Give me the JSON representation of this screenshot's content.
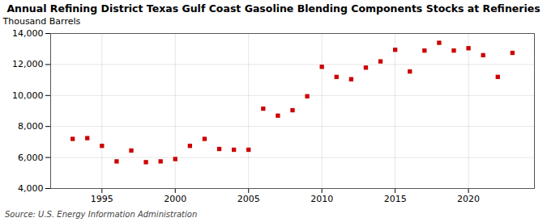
{
  "chart_data": {
    "type": "scatter",
    "title": "Annual Refining District Texas Gulf Coast Gasoline Blending Components Stocks at Refineries",
    "ylabel": "Thousand Barrels",
    "source": "Source: U.S. Energy Information Administration",
    "x": [
      1993,
      1994,
      1995,
      1996,
      1997,
      1998,
      1999,
      2000,
      2001,
      2002,
      2003,
      2004,
      2005,
      2006,
      2007,
      2008,
      2009,
      2010,
      2011,
      2012,
      2013,
      2014,
      2015,
      2016,
      2017,
      2018,
      2019,
      2020,
      2021,
      2022,
      2023
    ],
    "values": [
      7200,
      7250,
      6750,
      5750,
      6450,
      5700,
      5750,
      5900,
      6750,
      7200,
      6550,
      6500,
      6500,
      9150,
      8700,
      9050,
      9950,
      11850,
      11200,
      11050,
      11800,
      12200,
      12950,
      11550,
      12900,
      13400,
      12900,
      13050,
      12600,
      11200,
      12750
    ],
    "color": "#cc0000",
    "marker": "square",
    "grid": true,
    "xlim": [
      1991.5,
      2024.5
    ],
    "xticks": [
      1995,
      2000,
      2005,
      2010,
      2015,
      2020
    ],
    "ylim": [
      4000,
      14000
    ],
    "yticks": [
      {
        "value": 4000,
        "label": "4,000"
      },
      {
        "value": 6000,
        "label": "6,000"
      },
      {
        "value": 8000,
        "label": "8,000"
      },
      {
        "value": 10000,
        "label": "10,000"
      },
      {
        "value": 12000,
        "label": "12,000"
      },
      {
        "value": 14000,
        "label": "14,000"
      }
    ]
  }
}
